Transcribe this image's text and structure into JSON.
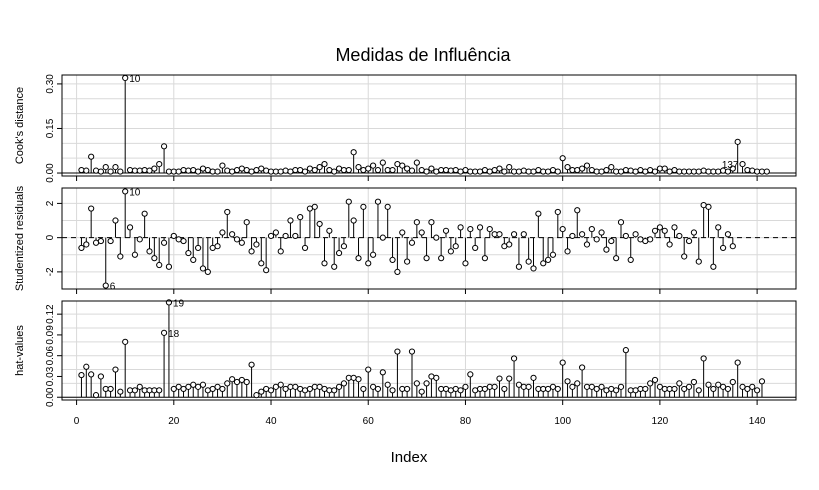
{
  "chart_data": {
    "type": "scatter",
    "title": "Medidas de Influência",
    "xlabel": "Index",
    "xlim": [
      -3,
      148
    ],
    "x_ticks": [
      0,
      20,
      40,
      60,
      80,
      100,
      120,
      140
    ],
    "x_tick_labels": [
      "0",
      "20",
      "40",
      "60",
      "80",
      "100",
      "120",
      "140"
    ],
    "grid": true,
    "panels": [
      {
        "ylabel": "Cook's distance",
        "ylim": [
          -0.01,
          0.33
        ],
        "y_ticks": [
          0.0,
          0.15,
          0.3
        ],
        "y_tick_labels": [
          "0.00",
          "0.15",
          "0.30"
        ],
        "grid_y": [
          0.0,
          0.05,
          0.1,
          0.15,
          0.2,
          0.25,
          0.3
        ],
        "baseline": 0,
        "baseline_dashed": false,
        "values": [
          0.01,
          0.008,
          0.055,
          0.008,
          0.005,
          0.02,
          0.005,
          0.02,
          0.005,
          0.32,
          0.01,
          0.008,
          0.008,
          0.01,
          0.008,
          0.015,
          0.03,
          0.09,
          0.005,
          0.005,
          0.005,
          0.01,
          0.008,
          0.01,
          0.005,
          0.015,
          0.01,
          0.005,
          0.005,
          0.025,
          0.008,
          0.005,
          0.01,
          0.015,
          0.01,
          0.005,
          0.01,
          0.015,
          0.008,
          0.005,
          0.005,
          0.005,
          0.008,
          0.005,
          0.01,
          0.01,
          0.005,
          0.015,
          0.01,
          0.02,
          0.03,
          0.01,
          0.005,
          0.015,
          0.01,
          0.01,
          0.07,
          0.02,
          0.01,
          0.015,
          0.025,
          0.01,
          0.035,
          0.01,
          0.01,
          0.03,
          0.025,
          0.015,
          0.008,
          0.035,
          0.01,
          0.005,
          0.015,
          0.005,
          0.01,
          0.01,
          0.008,
          0.01,
          0.005,
          0.01,
          0.005,
          0.005,
          0.005,
          0.01,
          0.005,
          0.01,
          0.015,
          0.005,
          0.02,
          0.005,
          0.005,
          0.008,
          0.005,
          0.005,
          0.01,
          0.005,
          0.005,
          0.01,
          0.005,
          0.05,
          0.02,
          0.01,
          0.01,
          0.015,
          0.025,
          0.01,
          0.005,
          0.005,
          0.01,
          0.02,
          0.005,
          0.005,
          0.01,
          0.008,
          0.005,
          0.01,
          0.005,
          0.01,
          0.005,
          0.015,
          0.015,
          0.005,
          0.01,
          0.005,
          0.005,
          0.005,
          0.005,
          0.005,
          0.008,
          0.005,
          0.005,
          0.005,
          0.008,
          0.005,
          0.015,
          0.105,
          0.03,
          0.01,
          0.008,
          0.005,
          0.005,
          0.005
        ],
        "labels": [
          {
            "index": 10,
            "text": "10",
            "side": "right"
          },
          {
            "index": 137,
            "text": "137",
            "side": "left"
          }
        ]
      },
      {
        "ylabel": "Studentized residuals",
        "ylim": [
          -3.0,
          2.9
        ],
        "y_ticks": [
          -2,
          0,
          2
        ],
        "y_tick_labels": [
          "-2",
          "0",
          "2"
        ],
        "grid_y": [
          -2,
          -1,
          0,
          1,
          2
        ],
        "baseline": 0,
        "baseline_dashed": true,
        "values": [
          -0.6,
          -0.4,
          1.7,
          -0.3,
          -0.2,
          -2.8,
          -0.2,
          1.0,
          -1.1,
          2.7,
          0.6,
          -1.0,
          -0.1,
          1.4,
          -0.8,
          -1.2,
          -1.6,
          -0.3,
          -1.7,
          0.1,
          -0.1,
          -0.2,
          -0.9,
          -1.3,
          -0.6,
          -1.8,
          -2.0,
          -0.6,
          -0.5,
          0.3,
          1.5,
          0.2,
          -0.1,
          -0.3,
          0.9,
          -0.8,
          -0.4,
          -1.5,
          -1.9,
          0.1,
          0.3,
          -0.8,
          0.1,
          1.0,
          0.1,
          1.2,
          -0.6,
          1.7,
          1.8,
          0.8,
          -1.5,
          0.4,
          -1.7,
          -0.9,
          -0.5,
          2.1,
          1.0,
          -1.2,
          1.8,
          -1.5,
          -1.0,
          2.1,
          0.0,
          1.8,
          -1.3,
          -2.0,
          0.3,
          -1.4,
          -0.3,
          0.9,
          0.3,
          -1.2,
          0.9,
          0.0,
          -1.2,
          0.4,
          -0.8,
          -0.5,
          0.6,
          -1.5,
          0.5,
          -0.6,
          0.6,
          -1.2,
          0.5,
          0.2,
          0.2,
          -0.5,
          -0.4,
          0.2,
          -1.7,
          0.2,
          -1.4,
          -1.8,
          1.4,
          -1.5,
          -1.3,
          -1.0,
          1.5,
          0.5,
          -0.8,
          0.1,
          1.6,
          0.2,
          -0.4,
          0.5,
          -0.1,
          0.3,
          -0.7,
          -0.2,
          -1.2,
          0.9,
          0.1,
          -1.3,
          0.2,
          -0.1,
          -0.2,
          -0.1,
          0.4,
          0.6,
          0.4,
          -0.4,
          0.6,
          0.1,
          -1.1,
          -0.2,
          0.3,
          -1.4,
          1.9,
          1.8,
          -1.7,
          0.6,
          -0.6,
          0.2,
          -0.5
        ],
        "labels": [
          {
            "index": 6,
            "text": "6",
            "side": "right"
          },
          {
            "index": 10,
            "text": "10",
            "side": "right"
          }
        ]
      },
      {
        "ylabel": "hat-values",
        "ylim": [
          -0.004,
          0.139
        ],
        "y_ticks": [
          0.0,
          0.03,
          0.06,
          0.09,
          0.12
        ],
        "y_tick_labels": [
          "0.00",
          "0.03",
          "0.06",
          "0.09",
          "0.12"
        ],
        "grid_y": [
          0.0,
          0.02,
          0.04,
          0.06,
          0.08,
          0.1,
          0.12
        ],
        "baseline": 0,
        "baseline_dashed": false,
        "values": [
          0.032,
          0.044,
          0.033,
          0.003,
          0.03,
          0.012,
          0.012,
          0.04,
          0.008,
          0.08,
          0.01,
          0.01,
          0.015,
          0.01,
          0.01,
          0.01,
          0.01,
          0.093,
          0.137,
          0.012,
          0.015,
          0.012,
          0.015,
          0.018,
          0.015,
          0.018,
          0.01,
          0.012,
          0.015,
          0.012,
          0.02,
          0.026,
          0.022,
          0.025,
          0.022,
          0.047,
          0.003,
          0.008,
          0.012,
          0.01,
          0.015,
          0.018,
          0.012,
          0.015,
          0.015,
          0.012,
          0.01,
          0.012,
          0.015,
          0.015,
          0.012,
          0.01,
          0.01,
          0.015,
          0.02,
          0.028,
          0.028,
          0.026,
          0.012,
          0.04,
          0.015,
          0.012,
          0.036,
          0.018,
          0.01,
          0.066,
          0.012,
          0.012,
          0.066,
          0.02,
          0.008,
          0.02,
          0.03,
          0.028,
          0.012,
          0.012,
          0.01,
          0.012,
          0.01,
          0.015,
          0.033,
          0.01,
          0.012,
          0.012,
          0.015,
          0.015,
          0.027,
          0.012,
          0.027,
          0.056,
          0.018,
          0.015,
          0.015,
          0.028,
          0.012,
          0.012,
          0.012,
          0.015,
          0.012,
          0.05,
          0.023,
          0.015,
          0.02,
          0.043,
          0.015,
          0.015,
          0.012,
          0.015,
          0.01,
          0.012,
          0.01,
          0.015,
          0.068,
          0.01,
          0.01,
          0.012,
          0.012,
          0.02,
          0.025,
          0.015,
          0.012,
          0.012,
          0.012,
          0.02,
          0.012,
          0.015,
          0.022,
          0.01,
          0.056,
          0.018,
          0.012,
          0.018,
          0.015,
          0.012,
          0.022,
          0.05,
          0.015,
          0.012,
          0.015,
          0.01,
          0.023
        ],
        "labels": [
          {
            "index": 18,
            "text": "18",
            "side": "right"
          },
          {
            "index": 19,
            "text": "19",
            "side": "right"
          }
        ]
      }
    ]
  }
}
